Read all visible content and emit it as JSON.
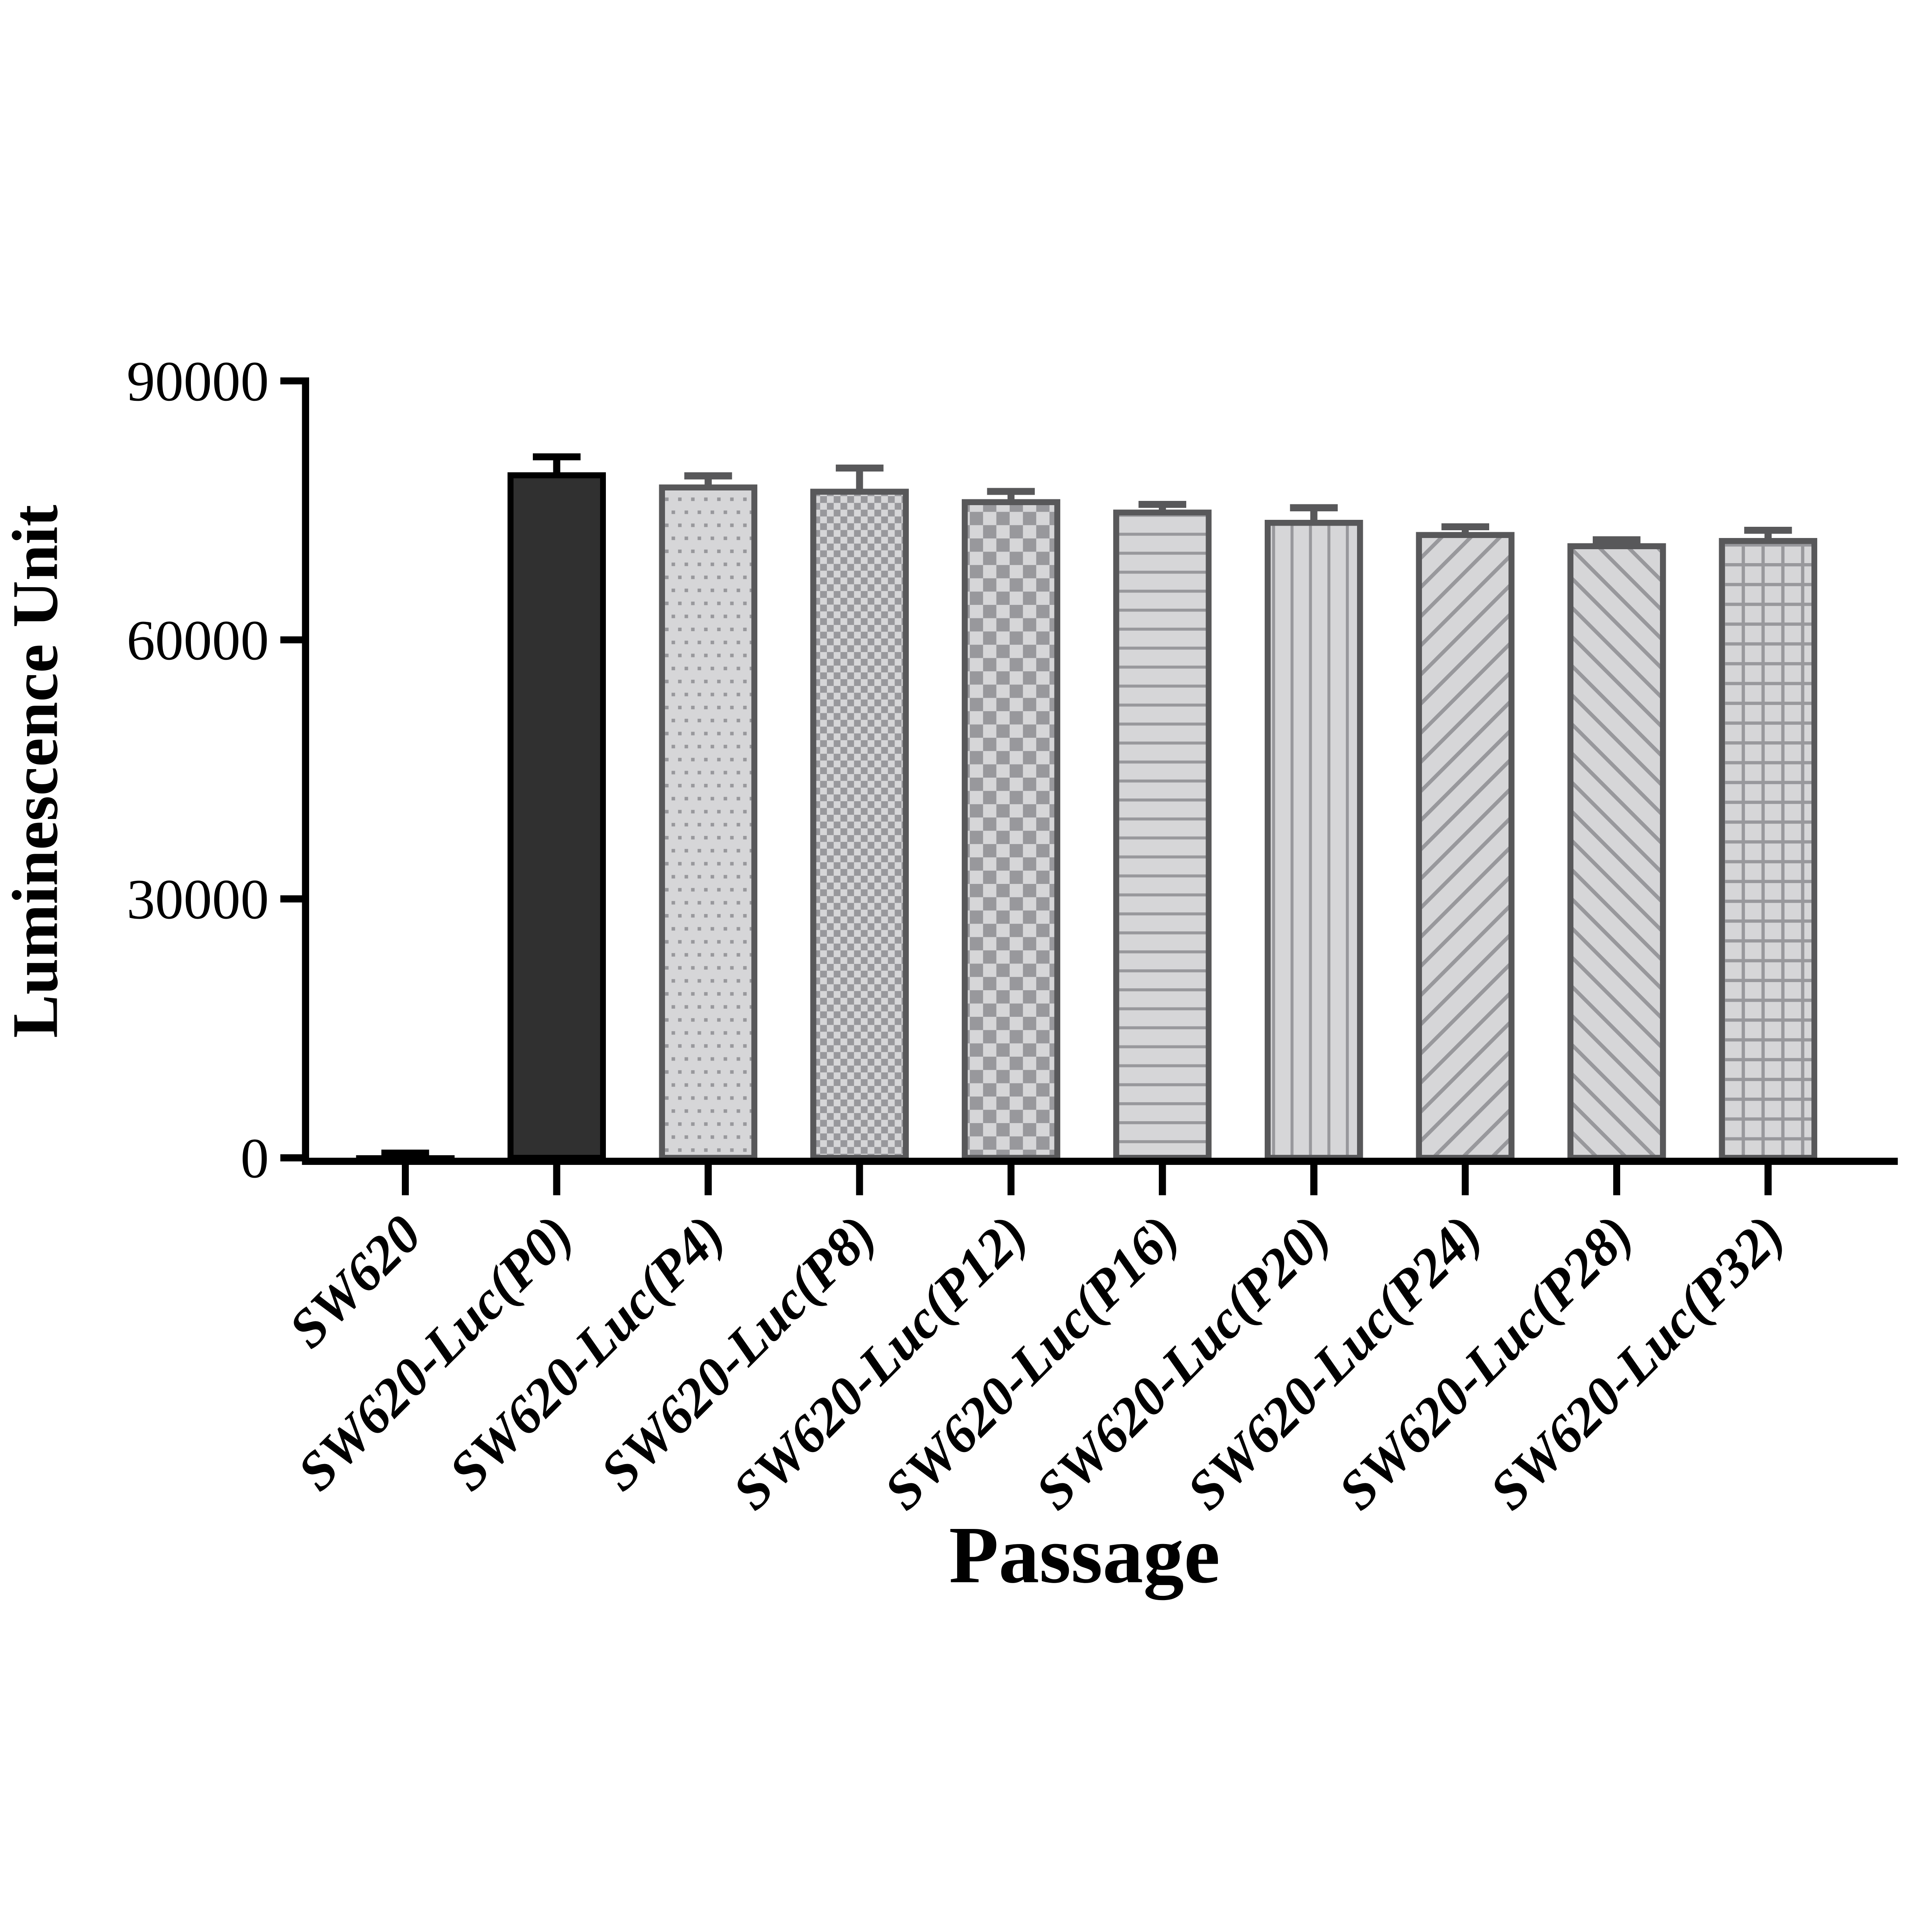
{
  "chart_data": {
    "type": "bar",
    "title": "",
    "xlabel": "Passage",
    "ylabel": "Luminescence Unit",
    "ylim": [
      0,
      90000
    ],
    "yticks": [
      0,
      30000,
      60000,
      90000
    ],
    "ytick_labels": [
      "0",
      "30000",
      "60000",
      "90000"
    ],
    "grid": "off",
    "legend": "none",
    "categories": [
      "SW620",
      "SW620-Luc(P0)",
      "SW620-Luc(P4)",
      "SW620-Luc(P8)",
      "SW620-Luc(P12)",
      "SW620-Luc(P16)",
      "SW620-Luc(P20)",
      "SW620-Luc(P24)",
      "SW620-Luc(P28)",
      "SW620-Luc(P32)"
    ],
    "values": [
      300,
      79400,
      78000,
      77500,
      76300,
      75100,
      73900,
      72500,
      71200,
      71800
    ],
    "errors_plus": [
      250,
      1800,
      1000,
      2400,
      900,
      600,
      1400,
      600,
      400,
      900
    ],
    "patterns": [
      "solid-black",
      "solid-dark",
      "dots",
      "checker-fine",
      "checker-coarse",
      "hlines",
      "vlines",
      "diag-up",
      "diag-down",
      "grid"
    ],
    "colors": {
      "axis_black": "#000000",
      "solid_dark_fill": "#303030",
      "bar_fill_light": "#d6d6d8",
      "pattern_gray": "#98989c",
      "border_gray": "#58585a",
      "background": "#ffffff"
    }
  }
}
